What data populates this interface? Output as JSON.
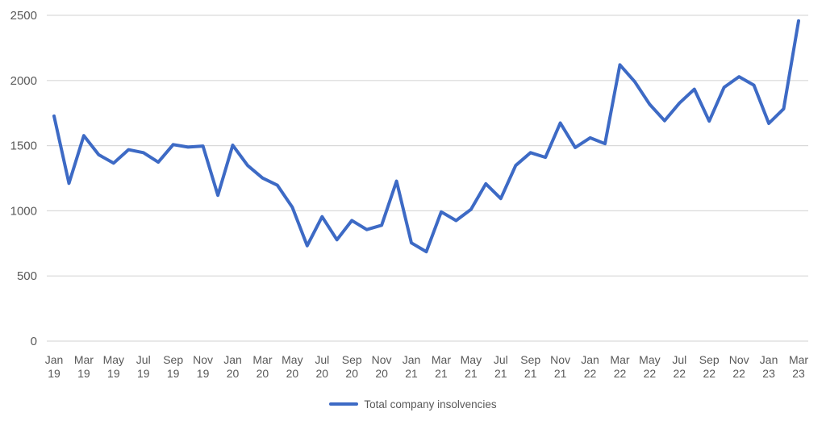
{
  "chart_data": {
    "type": "line",
    "title": "",
    "xlabel": "",
    "ylabel": "",
    "x": [
      "Jan 19",
      "Feb 19",
      "Mar 19",
      "Apr 19",
      "May 19",
      "Jun 19",
      "Jul 19",
      "Aug 19",
      "Sep 19",
      "Oct 19",
      "Nov 19",
      "Dec 19",
      "Jan 20",
      "Feb 20",
      "Mar 20",
      "Apr 20",
      "May 20",
      "Jun 20",
      "Jul 20",
      "Aug 20",
      "Sep 20",
      "Oct 20",
      "Nov 20",
      "Dec 20",
      "Jan 21",
      "Feb 21",
      "Mar 21",
      "Apr 21",
      "May 21",
      "Jun 21",
      "Jul 21",
      "Aug 21",
      "Sep 21",
      "Oct 21",
      "Nov 21",
      "Dec 21",
      "Jan 22",
      "Feb 22",
      "Mar 22",
      "Apr 22",
      "May 22",
      "Jun 22",
      "Jul 22",
      "Aug 22",
      "Sep 22",
      "Oct 22",
      "Nov 22",
      "Dec 22",
      "Jan 23",
      "Feb 23",
      "Mar 23"
    ],
    "x_label_every": 2,
    "series": [
      {
        "name": "Total company insolvencies",
        "color": "#3D6AC5",
        "values": [
          1727,
          1211,
          1577,
          1430,
          1366,
          1469,
          1446,
          1373,
          1508,
          1489,
          1497,
          1119,
          1503,
          1348,
          1252,
          1196,
          1027,
          732,
          955,
          778,
          926,
          856,
          889,
          1228,
          754,
          686,
          992,
          925,
          1011,
          1207,
          1094,
          1348,
          1446,
          1410,
          1674,
          1486,
          1560,
          1515,
          2120,
          1991,
          1817,
          1691,
          1827,
          1933,
          1688,
          1948,
          2029,
          1964,
          1671,
          1783,
          2457
        ]
      }
    ],
    "ylim": [
      0,
      2500
    ],
    "y_ticks": [
      0,
      500,
      1000,
      1500,
      2000,
      2500
    ],
    "grid": true,
    "legend_position": "bottom"
  },
  "legend": {
    "label": "Total company insolvencies"
  },
  "colors": {
    "line": "#3D6AC5",
    "axis_text": "#595959",
    "gridline": "#D9D9D9",
    "background": "#FFFFFF"
  }
}
